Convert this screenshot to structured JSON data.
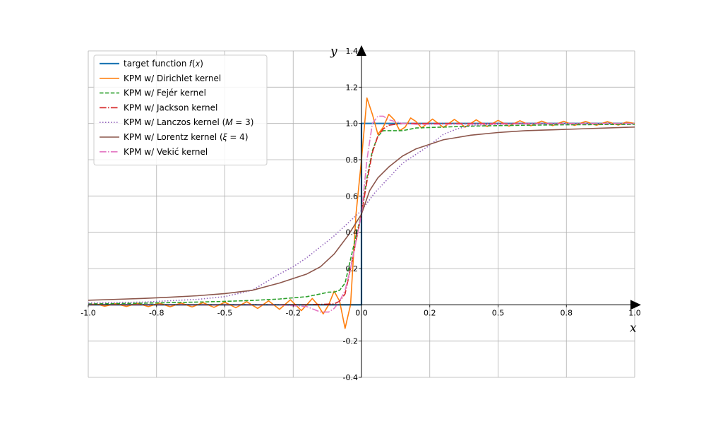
{
  "chart_data": {
    "type": "line",
    "title": "",
    "xlabel": "x",
    "ylabel": "y",
    "xlim": [
      -1.0,
      1.0
    ],
    "ylim": [
      -0.4,
      1.4
    ],
    "grid": true,
    "legend_position": "top-left",
    "x_ticks": [
      {
        "value": -1.0,
        "label": "-1.0"
      },
      {
        "value": -0.75,
        "label": "-0.8"
      },
      {
        "value": -0.5,
        "label": "-0.5"
      },
      {
        "value": -0.25,
        "label": "-0.2"
      },
      {
        "value": 0.0,
        "label": "0.0"
      },
      {
        "value": 0.25,
        "label": "0.2"
      },
      {
        "value": 0.5,
        "label": "0.5"
      },
      {
        "value": 0.75,
        "label": "0.8"
      },
      {
        "value": 1.0,
        "label": "1.0"
      }
    ],
    "y_ticks": [
      {
        "value": -0.4,
        "label": "-0.4"
      },
      {
        "value": -0.2,
        "label": "-0.2"
      },
      {
        "value": 0.2,
        "label": "0.2"
      },
      {
        "value": 0.4,
        "label": "0.4"
      },
      {
        "value": 0.6,
        "label": "0.6"
      },
      {
        "value": 0.8,
        "label": "0.8"
      },
      {
        "value": 1.0,
        "label": "1.0"
      },
      {
        "value": 1.2,
        "label": "1.2"
      },
      {
        "value": 1.4,
        "label": "1.4"
      }
    ],
    "series": [
      {
        "name": "target function f(x)",
        "color": "#1f77b4",
        "dash": "solid",
        "points": [
          [
            -1.0,
            0
          ],
          [
            0.0,
            0
          ],
          [
            0.0,
            1
          ],
          [
            1.0,
            1
          ]
        ]
      },
      {
        "name": "KPM w/ Dirichlet kernel",
        "color": "#ff7f0e",
        "dash": "solid",
        "points": [
          [
            -1.0,
            0.0
          ],
          [
            -0.97,
            0.005
          ],
          [
            -0.94,
            -0.008
          ],
          [
            -0.9,
            0.006
          ],
          [
            -0.86,
            -0.009
          ],
          [
            -0.82,
            0.008
          ],
          [
            -0.78,
            -0.01
          ],
          [
            -0.74,
            0.009
          ],
          [
            -0.7,
            -0.011
          ],
          [
            -0.66,
            0.01
          ],
          [
            -0.62,
            -0.012
          ],
          [
            -0.58,
            0.012
          ],
          [
            -0.54,
            -0.014
          ],
          [
            -0.5,
            0.014
          ],
          [
            -0.46,
            -0.016
          ],
          [
            -0.42,
            0.017
          ],
          [
            -0.38,
            -0.02
          ],
          [
            -0.34,
            0.022
          ],
          [
            -0.3,
            -0.025
          ],
          [
            -0.26,
            0.028
          ],
          [
            -0.22,
            -0.032
          ],
          [
            -0.2,
            0.0
          ],
          [
            -0.18,
            0.035
          ],
          [
            -0.16,
            0.0
          ],
          [
            -0.14,
            -0.05
          ],
          [
            -0.12,
            0.0
          ],
          [
            -0.1,
            0.075
          ],
          [
            -0.08,
            0.02
          ],
          [
            -0.06,
            -0.13
          ],
          [
            -0.04,
            0.0
          ],
          [
            -0.02,
            0.5
          ],
          [
            0.0,
            0.8
          ],
          [
            0.02,
            1.14
          ],
          [
            0.04,
            1.05
          ],
          [
            0.06,
            0.94
          ],
          [
            0.08,
            0.98
          ],
          [
            0.1,
            1.05
          ],
          [
            0.12,
            1.02
          ],
          [
            0.14,
            0.96
          ],
          [
            0.16,
            0.98
          ],
          [
            0.18,
            1.03
          ],
          [
            0.2,
            1.01
          ],
          [
            0.22,
            0.975
          ],
          [
            0.26,
            1.024
          ],
          [
            0.3,
            0.978
          ],
          [
            0.34,
            1.022
          ],
          [
            0.38,
            0.98
          ],
          [
            0.42,
            1.02
          ],
          [
            0.46,
            0.983
          ],
          [
            0.5,
            1.017
          ],
          [
            0.54,
            0.985
          ],
          [
            0.58,
            1.015
          ],
          [
            0.62,
            0.987
          ],
          [
            0.66,
            1.013
          ],
          [
            0.7,
            0.988
          ],
          [
            0.74,
            1.012
          ],
          [
            0.78,
            0.989
          ],
          [
            0.82,
            1.011
          ],
          [
            0.86,
            0.99
          ],
          [
            0.9,
            1.01
          ],
          [
            0.94,
            0.991
          ],
          [
            0.97,
            1.008
          ],
          [
            1.0,
            1.0
          ]
        ]
      },
      {
        "name": "KPM w/ Fejér kernel",
        "color": "#2ca02c",
        "dash": "dashed",
        "points": [
          [
            -1.0,
            0.005
          ],
          [
            -0.9,
            0.007
          ],
          [
            -0.8,
            0.009
          ],
          [
            -0.7,
            0.012
          ],
          [
            -0.6,
            0.015
          ],
          [
            -0.5,
            0.019
          ],
          [
            -0.4,
            0.024
          ],
          [
            -0.3,
            0.032
          ],
          [
            -0.2,
            0.045
          ],
          [
            -0.15,
            0.06
          ],
          [
            -0.12,
            0.07
          ],
          [
            -0.1,
            0.07
          ],
          [
            -0.08,
            0.08
          ],
          [
            -0.06,
            0.12
          ],
          [
            -0.04,
            0.25
          ],
          [
            -0.02,
            0.38
          ],
          [
            0.0,
            0.5
          ],
          [
            0.02,
            0.7
          ],
          [
            0.04,
            0.85
          ],
          [
            0.06,
            0.93
          ],
          [
            0.08,
            0.96
          ],
          [
            0.1,
            0.96
          ],
          [
            0.15,
            0.96
          ],
          [
            0.2,
            0.975
          ],
          [
            0.3,
            0.98
          ],
          [
            0.4,
            0.985
          ],
          [
            0.5,
            0.988
          ],
          [
            0.6,
            0.99
          ],
          [
            0.7,
            0.992
          ],
          [
            0.8,
            0.993
          ],
          [
            0.9,
            0.994
          ],
          [
            1.0,
            0.995
          ]
        ]
      },
      {
        "name": "KPM w/ Jackson kernel",
        "color": "#d62728",
        "dash": "dashdot",
        "points": [
          [
            -1.0,
            0.0
          ],
          [
            -0.2,
            0.0
          ],
          [
            -0.1,
            0.005
          ],
          [
            -0.08,
            0.02
          ],
          [
            -0.06,
            0.06
          ],
          [
            -0.04,
            0.2
          ],
          [
            -0.02,
            0.35
          ],
          [
            0.0,
            0.5
          ],
          [
            0.02,
            0.68
          ],
          [
            0.04,
            0.84
          ],
          [
            0.06,
            0.93
          ],
          [
            0.08,
            0.97
          ],
          [
            0.1,
            0.99
          ],
          [
            0.15,
            1.0
          ],
          [
            1.0,
            1.0
          ]
        ]
      },
      {
        "name": "KPM w/ Lanczos kernel (M = 3)",
        "color": "#9467bd",
        "dash": "dotted",
        "points": [
          [
            -1.0,
            0.01
          ],
          [
            -0.8,
            0.015
          ],
          [
            -0.6,
            0.03
          ],
          [
            -0.5,
            0.045
          ],
          [
            -0.4,
            0.08
          ],
          [
            -0.3,
            0.17
          ],
          [
            -0.25,
            0.21
          ],
          [
            -0.2,
            0.26
          ],
          [
            -0.15,
            0.32
          ],
          [
            -0.1,
            0.38
          ],
          [
            -0.05,
            0.45
          ],
          [
            0.0,
            0.52
          ],
          [
            0.05,
            0.62
          ],
          [
            0.1,
            0.7
          ],
          [
            0.15,
            0.78
          ],
          [
            0.2,
            0.83
          ],
          [
            0.25,
            0.88
          ],
          [
            0.3,
            0.94
          ],
          [
            0.35,
            0.97
          ],
          [
            0.4,
            0.99
          ],
          [
            0.5,
            0.995
          ],
          [
            0.6,
            1.0
          ],
          [
            0.7,
            1.0
          ],
          [
            0.8,
            1.0
          ],
          [
            0.9,
            1.0
          ],
          [
            1.0,
            1.0
          ]
        ]
      },
      {
        "name": "KPM w/ Lorentz kernel (ξ = 4)",
        "color": "#8c564b",
        "dash": "solid",
        "points": [
          [
            -1.0,
            0.025
          ],
          [
            -0.9,
            0.03
          ],
          [
            -0.8,
            0.035
          ],
          [
            -0.7,
            0.042
          ],
          [
            -0.6,
            0.05
          ],
          [
            -0.5,
            0.062
          ],
          [
            -0.4,
            0.08
          ],
          [
            -0.3,
            0.12
          ],
          [
            -0.2,
            0.17
          ],
          [
            -0.15,
            0.21
          ],
          [
            -0.1,
            0.28
          ],
          [
            -0.05,
            0.38
          ],
          [
            0.0,
            0.5
          ],
          [
            0.03,
            0.63
          ],
          [
            0.06,
            0.7
          ],
          [
            0.1,
            0.76
          ],
          [
            0.15,
            0.82
          ],
          [
            0.2,
            0.86
          ],
          [
            0.3,
            0.91
          ],
          [
            0.4,
            0.935
          ],
          [
            0.5,
            0.95
          ],
          [
            0.6,
            0.96
          ],
          [
            0.7,
            0.965
          ],
          [
            0.8,
            0.97
          ],
          [
            0.9,
            0.975
          ],
          [
            1.0,
            0.98
          ]
        ]
      },
      {
        "name": "KPM w/ Vekić kernel",
        "color": "#e377c2",
        "dash": "dashdot",
        "points": [
          [
            -1.0,
            0.0
          ],
          [
            -0.3,
            0.0
          ],
          [
            -0.2,
            -0.01
          ],
          [
            -0.15,
            -0.04
          ],
          [
            -0.12,
            -0.04
          ],
          [
            -0.1,
            -0.02
          ],
          [
            -0.08,
            0.02
          ],
          [
            -0.06,
            0.08
          ],
          [
            -0.04,
            0.2
          ],
          [
            -0.02,
            0.35
          ],
          [
            0.0,
            0.5
          ],
          [
            0.02,
            0.8
          ],
          [
            0.04,
            1.0
          ],
          [
            0.06,
            1.04
          ],
          [
            0.08,
            1.04
          ],
          [
            0.1,
            1.02
          ],
          [
            0.15,
            1.0
          ],
          [
            0.2,
            0.995
          ],
          [
            1.0,
            1.0
          ]
        ]
      }
    ],
    "legend": [
      "target function 𝑓(𝑥)",
      "KPM w/ Dirichlet kernel",
      "KPM w/ Fejér kernel",
      "KPM w/ Jackson kernel",
      "KPM w/ Lanczos kernel (𝑀 = 3)",
      "KPM w/ Lorentz kernel (𝜉 = 4)",
      "KPM w/ Vekić kernel"
    ]
  }
}
